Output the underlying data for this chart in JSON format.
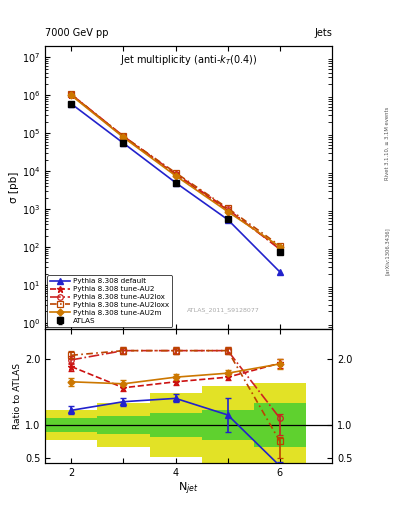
{
  "title": "Jet multiplicity (anti-$k_T$(0.4))",
  "header_left": "7000 GeV pp",
  "header_right": "Jets",
  "watermark": "ATLAS_2011_S9128077",
  "right_label_top": "Rivet 3.1.10, ≥ 3.1M events",
  "right_label_bottom": "[arXiv:1306.3436]",
  "x_label": "N$_{jet}$",
  "y_label_top": "σ [pb]",
  "y_label_bottom": "Ratio to ATLAS",
  "x_values": [
    2,
    3,
    4,
    5,
    6
  ],
  "atlas_y": [
    600000,
    55000,
    5000,
    550,
    75
  ],
  "atlas_yerr": [
    55000,
    5000,
    450,
    50,
    7
  ],
  "pythia_default_y": [
    600000,
    55000,
    5000,
    530,
    22
  ],
  "pythia_au2_y": [
    1050000,
    82000,
    8200,
    950,
    92
  ],
  "pythia_au2lox_y": [
    1060000,
    84000,
    8600,
    1000,
    87
  ],
  "pythia_au2loxx_y": [
    1060000,
    83000,
    9100,
    1060,
    108
  ],
  "pythia_au2m_y": [
    1000000,
    78000,
    7600,
    860,
    102
  ],
  "ratio_default": [
    1.22,
    1.35,
    1.4,
    1.15,
    0.38
  ],
  "ratio_default_yerr_lo": [
    0.06,
    0.06,
    0.06,
    0.25,
    0.3
  ],
  "ratio_default_yerr_hi": [
    0.06,
    0.06,
    0.06,
    0.25,
    0.06
  ],
  "ratio_au2": [
    1.88,
    1.56,
    1.65,
    1.72,
    1.93
  ],
  "ratio_au2_yerr": [
    0.06,
    0.05,
    0.05,
    0.05,
    0.07
  ],
  "ratio_au2lox": [
    1.98,
    2.12,
    2.12,
    2.12,
    1.1
  ],
  "ratio_au2lox_yerr_lo": [
    0.06,
    0.05,
    0.05,
    0.05,
    0.25
  ],
  "ratio_au2lox_yerr_hi": [
    0.06,
    0.05,
    0.05,
    0.05,
    0.06
  ],
  "ratio_au2loxx": [
    2.05,
    2.12,
    2.12,
    2.12,
    0.75
  ],
  "ratio_au2loxx_yerr_lo": [
    0.06,
    0.05,
    0.05,
    0.05,
    0.25
  ],
  "ratio_au2loxx_yerr_hi": [
    0.06,
    0.05,
    0.05,
    0.05,
    0.06
  ],
  "ratio_au2m": [
    1.65,
    1.62,
    1.72,
    1.78,
    1.92
  ],
  "ratio_au2m_yerr": [
    0.06,
    0.05,
    0.05,
    0.05,
    0.07
  ],
  "band_edges": [
    1.5,
    2.5,
    3.5,
    4.5,
    5.5,
    6.5
  ],
  "band_green_low": [
    0.9,
    0.87,
    0.82,
    0.77,
    0.67
  ],
  "band_green_high": [
    1.1,
    1.13,
    1.18,
    1.23,
    1.33
  ],
  "band_yellow_low": [
    0.77,
    0.67,
    0.52,
    0.42,
    0.37
  ],
  "band_yellow_high": [
    1.23,
    1.33,
    1.48,
    1.58,
    1.63
  ],
  "color_atlas": "#000000",
  "color_default": "#2222cc",
  "color_au2": "#cc1111",
  "color_au2lox": "#cc2222",
  "color_au2loxx": "#bb4400",
  "color_au2m": "#cc7700",
  "color_band_green": "#33cc33",
  "color_band_yellow": "#dddd00",
  "xlim": [
    1.5,
    7.0
  ],
  "ylim_top_lo": 0.7,
  "ylim_top_hi": 20000000.0,
  "ylim_bottom_lo": 0.42,
  "ylim_bottom_hi": 2.45
}
